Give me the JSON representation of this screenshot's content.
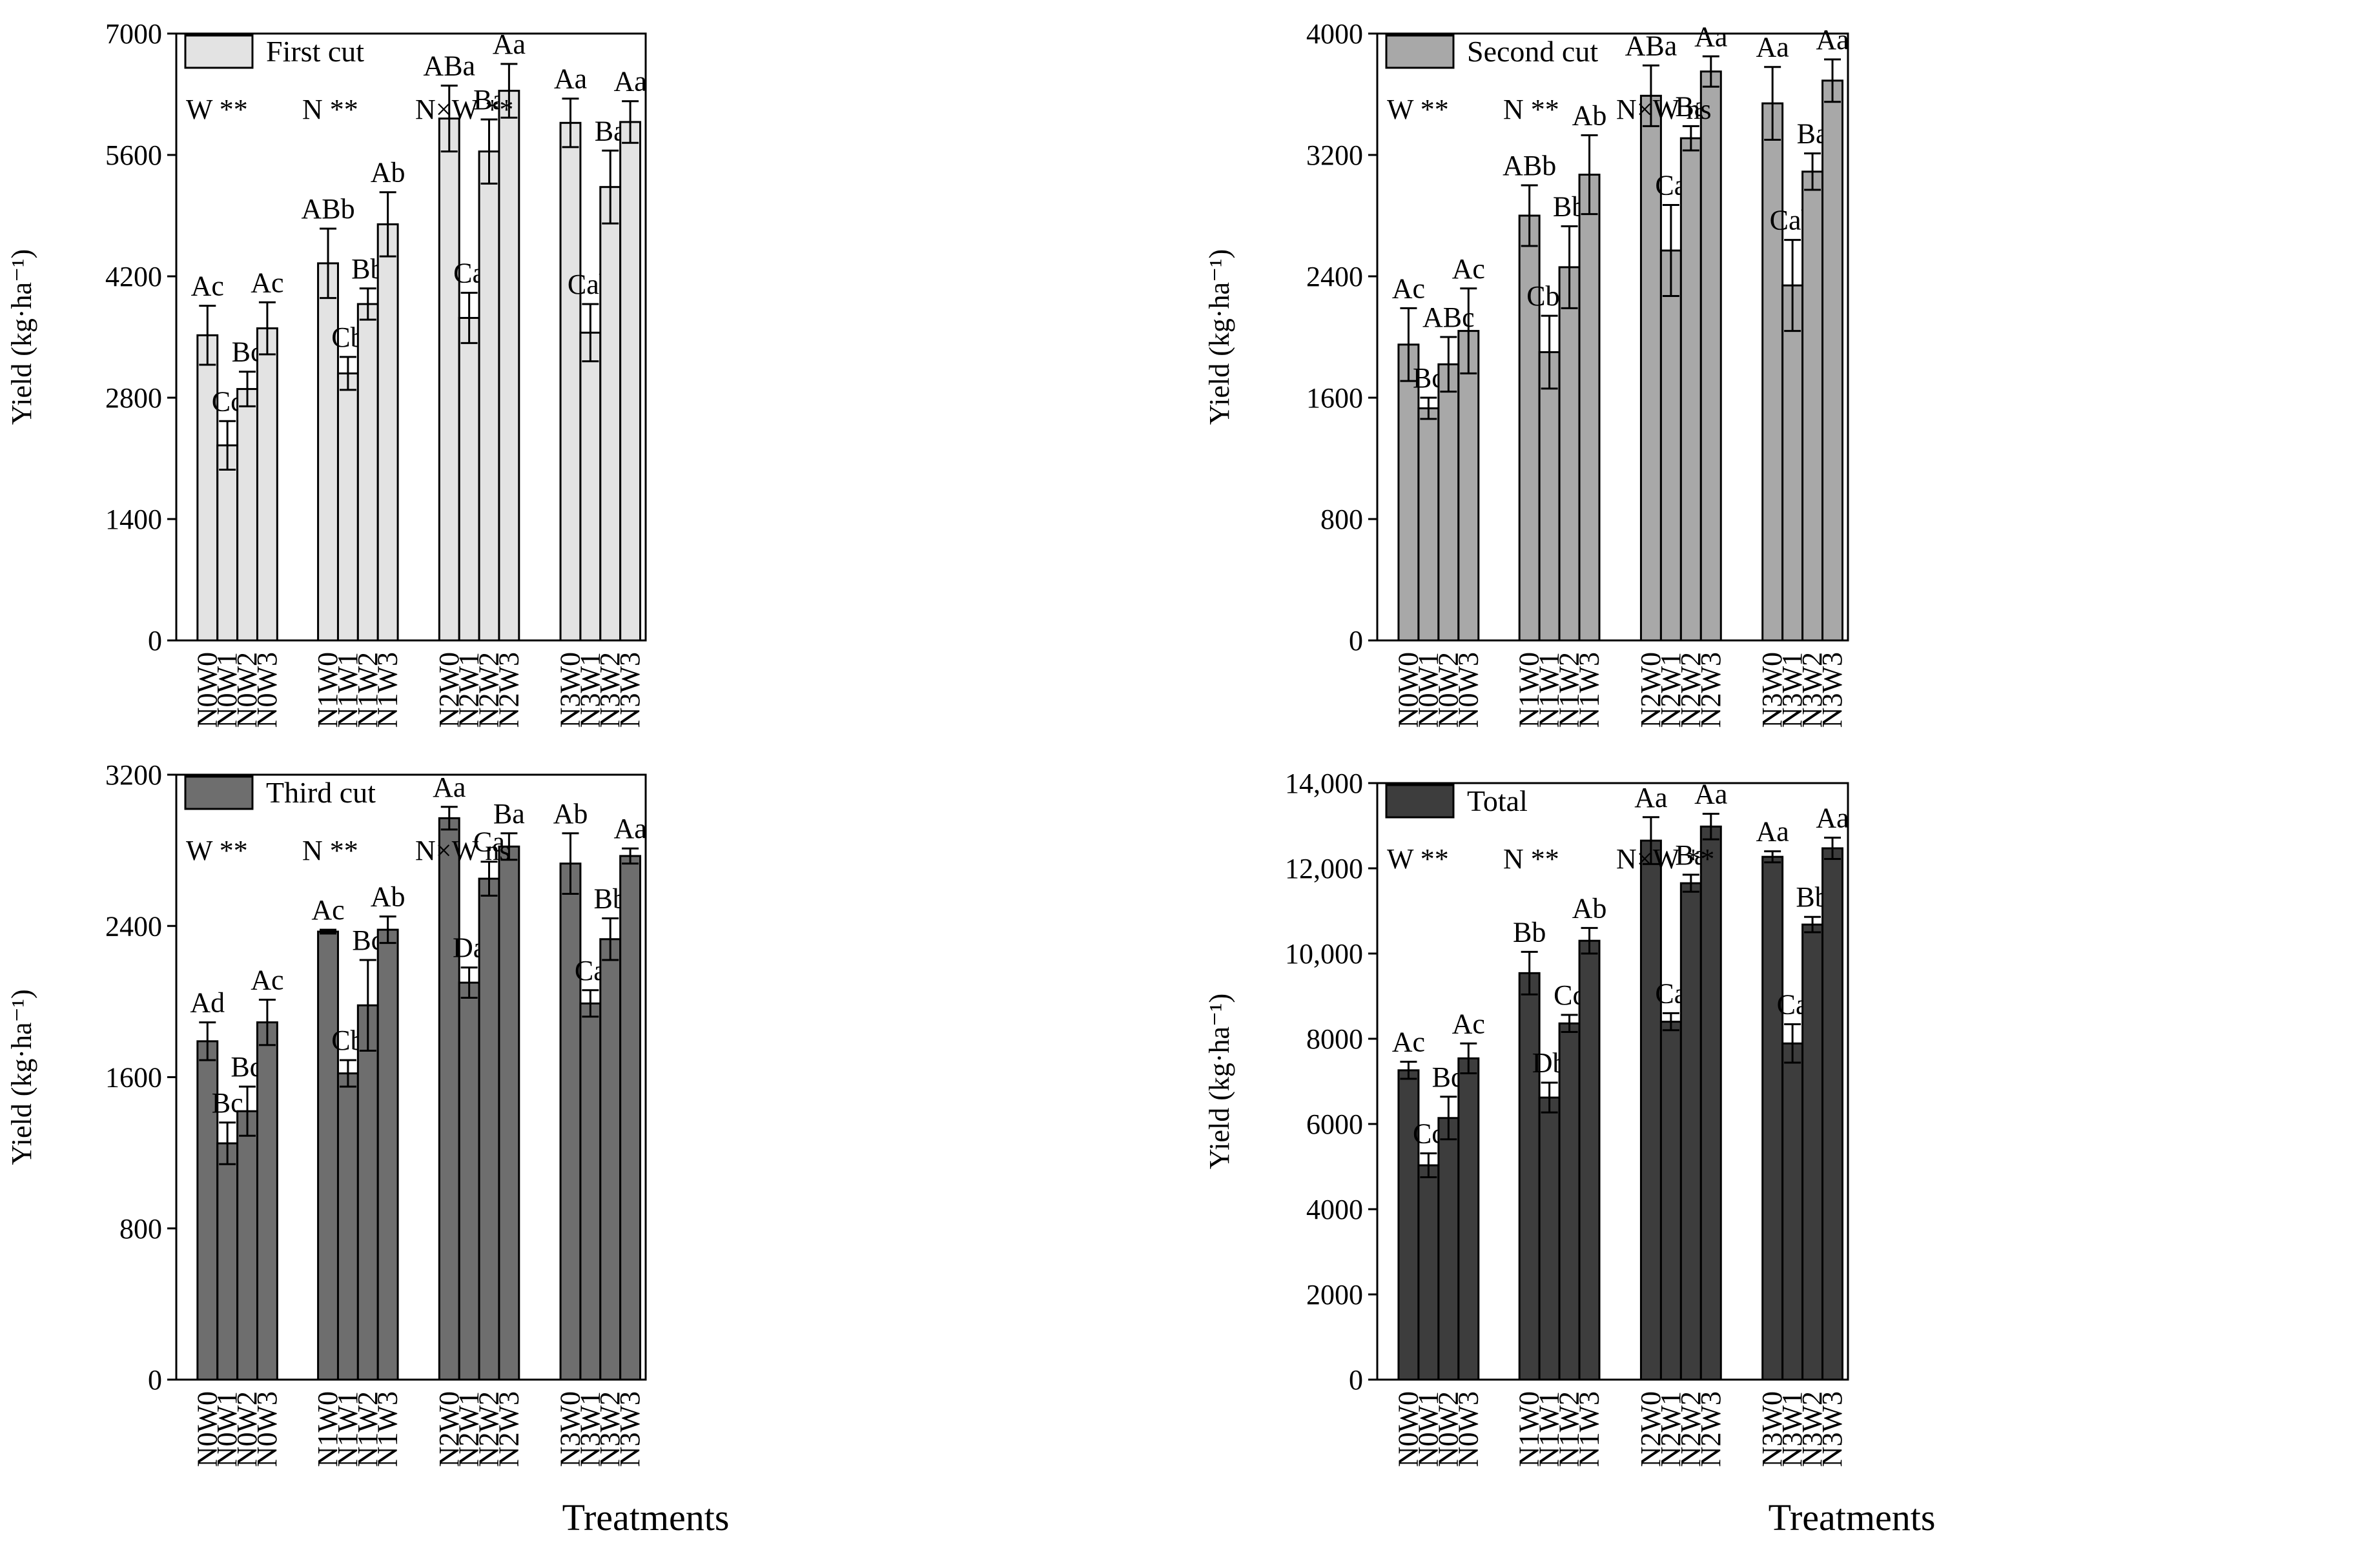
{
  "figure": {
    "x_title": "Treatments",
    "y_title": "Yield (kg·ha⁻¹)"
  },
  "chart_data": [
    {
      "type": "bar",
      "title": "First cut",
      "legend": "First cut",
      "color": "#e3e3e3",
      "xlabel": "Treatments",
      "ylabel": "Yield (kg·ha⁻¹)",
      "ylim": [
        0,
        7000
      ],
      "yticks": [
        0,
        1400,
        2800,
        4200,
        5600,
        7000
      ],
      "ytick_labels": [
        "0",
        "1400",
        "2800",
        "4200",
        "5600",
        "7000"
      ],
      "categories": [
        "N0W0",
        "N0W1",
        "N0W2",
        "N0W3",
        "N1W0",
        "N1W1",
        "N1W2",
        "N1W3",
        "N2W0",
        "N2W1",
        "N2W2",
        "N2W3",
        "N3W0",
        "N3W1",
        "N3W2",
        "N3W3"
      ],
      "values": [
        3520,
        2250,
        2900,
        3600,
        4350,
        3080,
        3880,
        4800,
        6020,
        3720,
        5640,
        6340,
        5970,
        3550,
        5230,
        5980
      ],
      "errors": [
        340,
        280,
        200,
        300,
        400,
        190,
        180,
        370,
        380,
        290,
        370,
        310,
        280,
        330,
        420,
        240
      ],
      "labels": [
        "Ac",
        "Cc",
        "Bc",
        "Ac",
        "ABb",
        "Cb",
        "Bb",
        "Ab",
        "ABa",
        "Ca",
        "Ba",
        "Aa",
        "Aa",
        "Cab",
        "Ba",
        "Aa"
      ],
      "significance": [
        {
          "factor": "W",
          "sig": "**"
        },
        {
          "factor": "N",
          "sig": "**"
        },
        {
          "factor": "N×W",
          "sig": "**"
        }
      ]
    },
    {
      "type": "bar",
      "title": "Second cut",
      "legend": "Second cut",
      "color": "#a8a8a8",
      "xlabel": "Treatments",
      "ylabel": "Yield (kg·ha⁻¹)",
      "ylim": [
        0,
        4000
      ],
      "yticks": [
        0,
        800,
        1600,
        2400,
        3200,
        4000
      ],
      "ytick_labels": [
        "0",
        "800",
        "1600",
        "2400",
        "3200",
        "4000"
      ],
      "categories": [
        "N0W0",
        "N0W1",
        "N0W2",
        "N0W3",
        "N1W0",
        "N1W1",
        "N1W2",
        "N1W3",
        "N2W0",
        "N2W1",
        "N2W2",
        "N2W3",
        "N3W0",
        "N3W1",
        "N3W2",
        "N3W3"
      ],
      "values": [
        1950,
        1530,
        1820,
        2040,
        2800,
        1900,
        2460,
        3070,
        3590,
        2570,
        3310,
        3750,
        3540,
        2340,
        3090,
        3690
      ],
      "errors": [
        240,
        70,
        180,
        280,
        200,
        240,
        270,
        260,
        200,
        300,
        80,
        100,
        240,
        300,
        120,
        140
      ],
      "labels": [
        "Ac",
        "Bc",
        "ABc",
        "Ac",
        "ABb",
        "Cbc",
        "Bb",
        "Ab",
        "ABa",
        "Ca",
        "Ba",
        "Aa",
        "Aa",
        "Cab",
        "Ba",
        "Aa"
      ],
      "significance": [
        {
          "factor": "W",
          "sig": "**"
        },
        {
          "factor": "N",
          "sig": "**"
        },
        {
          "factor": "N×W",
          "sig": "ns"
        }
      ]
    },
    {
      "type": "bar",
      "title": "Third cut",
      "legend": "Third cut",
      "color": "#6e6e6e",
      "xlabel": "Treatments",
      "ylabel": "Yield (kg·ha⁻¹)",
      "ylim": [
        0,
        3200
      ],
      "yticks": [
        0,
        800,
        1600,
        2400,
        3200
      ],
      "ytick_labels": [
        "0",
        "800",
        "1600",
        "2400",
        "3200"
      ],
      "categories": [
        "N0W0",
        "N0W1",
        "N0W2",
        "N0W3",
        "N1W0",
        "N1W1",
        "N1W2",
        "N1W3",
        "N2W0",
        "N2W1",
        "N2W2",
        "N2W3",
        "N3W0",
        "N3W1",
        "N3W2",
        "N3W3"
      ],
      "values": [
        1790,
        1250,
        1420,
        1890,
        2370,
        1620,
        1980,
        2380,
        2970,
        2100,
        2650,
        2820,
        2730,
        1990,
        2330,
        2770
      ],
      "errors": [
        100,
        110,
        130,
        120,
        10,
        70,
        240,
        70,
        60,
        80,
        90,
        70,
        160,
        70,
        110,
        40
      ],
      "labels": [
        "Ad",
        "Bc",
        "Bd",
        "Ac",
        "Ac",
        "Cb",
        "Bc",
        "Ab",
        "Aa",
        "Da",
        "Ca",
        "Ba",
        "Ab",
        "Ca",
        "Bb",
        "Aa"
      ],
      "significance": [
        {
          "factor": "W",
          "sig": "**"
        },
        {
          "factor": "N",
          "sig": "**"
        },
        {
          "factor": "N×W",
          "sig": "ns"
        }
      ]
    },
    {
      "type": "bar",
      "title": "Total",
      "legend": "Total",
      "color": "#3d3d3d",
      "xlabel": "Treatments",
      "ylabel": "Yield (kg·ha⁻¹)",
      "ylim": [
        0,
        14000
      ],
      "yticks": [
        0,
        2000,
        4000,
        6000,
        8000,
        10000,
        12000,
        14000
      ],
      "ytick_labels": [
        "0",
        "2000",
        "4000",
        "6000",
        "8000",
        "10,000",
        "12,000",
        "14,000"
      ],
      "categories": [
        "N0W0",
        "N0W1",
        "N0W2",
        "N0W3",
        "N1W0",
        "N1W1",
        "N1W2",
        "N1W3",
        "N2W0",
        "N2W1",
        "N2W2",
        "N2W3",
        "N3W0",
        "N3W1",
        "N3W2",
        "N3W3"
      ],
      "values": [
        7260,
        5030,
        6140,
        7540,
        9540,
        6620,
        8360,
        10300,
        12650,
        8400,
        11650,
        12980,
        12270,
        7890,
        10680,
        12470
      ],
      "errors": [
        200,
        280,
        500,
        350,
        500,
        350,
        200,
        300,
        550,
        200,
        200,
        300,
        130,
        450,
        180,
        250
      ],
      "labels": [
        "Ac",
        "Cc",
        "Bd",
        "Ac",
        "Bb",
        "Db",
        "Cc",
        "Ab",
        "Aa",
        "Ca",
        "Ba",
        "Aa",
        "Aa",
        "Ca",
        "Bb",
        "Aa"
      ],
      "significance": [
        {
          "factor": "W",
          "sig": "**"
        },
        {
          "factor": "N",
          "sig": "**"
        },
        {
          "factor": "N×W",
          "sig": "**"
        }
      ]
    }
  ]
}
